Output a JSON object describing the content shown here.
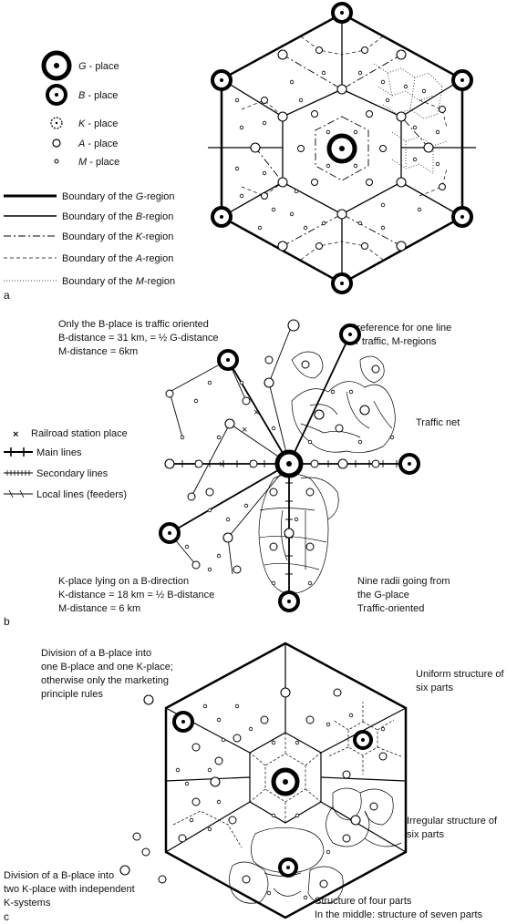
{
  "legend_a": {
    "places": [
      {
        "symbol": "G",
        "text": " - place"
      },
      {
        "symbol": "B",
        "text": " - place"
      },
      {
        "symbol": "K",
        "text": " - place"
      },
      {
        "symbol": "A",
        "text": " - place"
      },
      {
        "symbol": "M",
        "text": " - place"
      }
    ],
    "boundaries": [
      {
        "prefix": "Boundary of the ",
        "symbol": "G",
        "suffix": "-region"
      },
      {
        "prefix": "Boundary of the ",
        "symbol": "B",
        "suffix": "-region"
      },
      {
        "prefix": "Boundary of the ",
        "symbol": "K",
        "suffix": "-region"
      },
      {
        "prefix": "Boundary of the ",
        "symbol": "A",
        "suffix": "-region"
      },
      {
        "prefix": "Boundary of the ",
        "symbol": "M",
        "suffix": "-region"
      }
    ]
  },
  "panel_letters": {
    "a": "a",
    "b": "b",
    "c": "c"
  },
  "panel_b": {
    "top_left": [
      "Only the B-place is traffic oriented",
      "B-distance = 31 km, = ½ G-distance",
      "M-distance = 6km"
    ],
    "top_right": [
      "Preference for one line",
      "or traffic, M-regions"
    ],
    "traffic_net": "Traffic net",
    "legend": [
      {
        "symbol": "×",
        "text": "Railroad station place"
      },
      {
        "text": "Main lines"
      },
      {
        "text": "Secondary lines"
      },
      {
        "text": "Local lines (feeders)"
      }
    ],
    "bottom_left": [
      "K-place lying on a B-direction",
      "K-distance = 18 km = ½  B-distance",
      "M-distance = 6 km"
    ],
    "bottom_right": [
      "Nine radii going from",
      "the G-place",
      "Traffic-oriented"
    ]
  },
  "panel_c": {
    "top_left": [
      "Division of a B-place into",
      "one B-place and one K-place;",
      "otherwise only the marketing",
      "principle rules"
    ],
    "top_right": [
      "Uniform structure of",
      "six parts"
    ],
    "mid_right": [
      "Irregular structure of",
      "six parts"
    ],
    "bottom_left": [
      "Division of a B-place into",
      "two K-place with independent",
      "K-systems"
    ],
    "bottom_right": [
      "Structure of four parts",
      "In the middle: structure of seven parts"
    ]
  }
}
